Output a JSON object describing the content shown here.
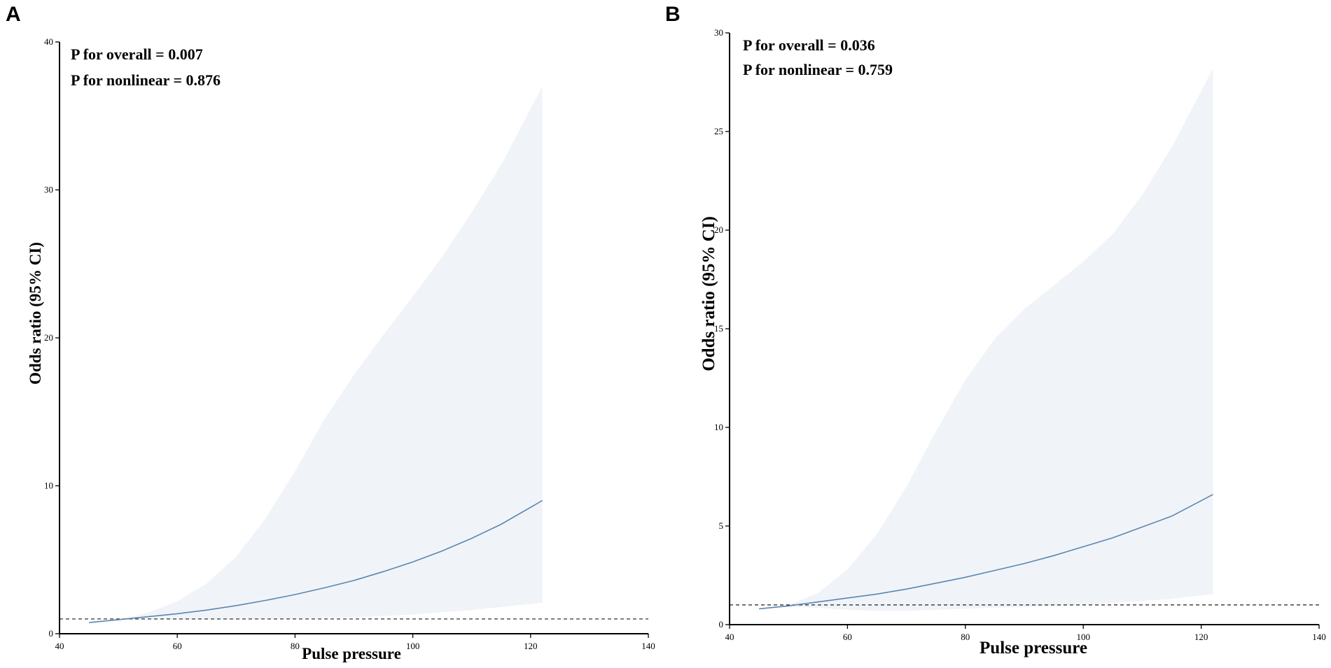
{
  "chart_data": [
    {
      "type": "line",
      "panel_label": "A",
      "xlabel": "Pulse pressure",
      "ylabel": "Odds ratio (95% CI)",
      "xlim": [
        40,
        140
      ],
      "ylim": [
        0,
        40
      ],
      "xticks": [
        "40",
        "60",
        "80",
        "100",
        "120",
        "140"
      ],
      "yticks": [
        "0",
        "10",
        "20",
        "30",
        "40"
      ],
      "annotations": [
        "P for overall = 0.007",
        "P for nonlinear = 0.876"
      ],
      "reference_line": 1,
      "colors": {
        "line": "#5b86b0",
        "band": "#f0f4f8",
        "reference": "#333333"
      },
      "series": [
        {
          "name": "Odds ratio",
          "x": [
            45,
            50,
            55,
            60,
            65,
            70,
            75,
            80,
            85,
            90,
            95,
            100,
            105,
            110,
            115,
            122
          ],
          "y": [
            0.75,
            0.95,
            1.15,
            1.35,
            1.6,
            1.9,
            2.25,
            2.65,
            3.1,
            3.6,
            4.2,
            4.85,
            5.6,
            6.45,
            7.4,
            9.0
          ],
          "lower": [
            0.75,
            0.95,
            0.95,
            0.95,
            0.95,
            0.95,
            1.0,
            1.0,
            1.05,
            1.1,
            1.2,
            1.3,
            1.45,
            1.6,
            1.8,
            2.1
          ],
          "upper": [
            0.75,
            0.95,
            1.4,
            2.2,
            3.4,
            5.2,
            7.8,
            11.0,
            14.5,
            17.5,
            20.2,
            22.8,
            25.5,
            28.5,
            31.7,
            37.0
          ]
        }
      ]
    },
    {
      "type": "line",
      "panel_label": "B",
      "xlabel": "Pulse pressure",
      "ylabel": "Odds ratio (95% CI)",
      "xlim": [
        40,
        140
      ],
      "ylim": [
        0,
        30
      ],
      "xticks": [
        "40",
        "60",
        "80",
        "100",
        "120",
        "140"
      ],
      "yticks": [
        "0",
        "5",
        "10",
        "15",
        "20",
        "25",
        "30"
      ],
      "annotations": [
        "P for overall = 0.036",
        "P for nonlinear = 0.759"
      ],
      "reference_line": 1,
      "colors": {
        "line": "#5b86b0",
        "band": "#f0f4f8",
        "reference": "#333333"
      },
      "series": [
        {
          "name": "Odds ratio",
          "x": [
            45,
            50,
            55,
            60,
            65,
            70,
            75,
            80,
            85,
            90,
            95,
            100,
            105,
            110,
            115,
            122
          ],
          "y": [
            0.8,
            0.95,
            1.15,
            1.35,
            1.55,
            1.8,
            2.1,
            2.4,
            2.75,
            3.1,
            3.5,
            3.95,
            4.4,
            4.95,
            5.5,
            6.6
          ],
          "lower": [
            0.8,
            0.9,
            0.85,
            0.75,
            0.7,
            0.7,
            0.75,
            0.8,
            0.85,
            0.9,
            0.95,
            1.0,
            1.1,
            1.2,
            1.3,
            1.55
          ],
          "upper": [
            0.8,
            1.0,
            1.6,
            2.8,
            4.6,
            7.0,
            9.8,
            12.4,
            14.5,
            16.0,
            17.2,
            18.4,
            19.8,
            21.8,
            24.2,
            28.2
          ]
        }
      ]
    }
  ]
}
